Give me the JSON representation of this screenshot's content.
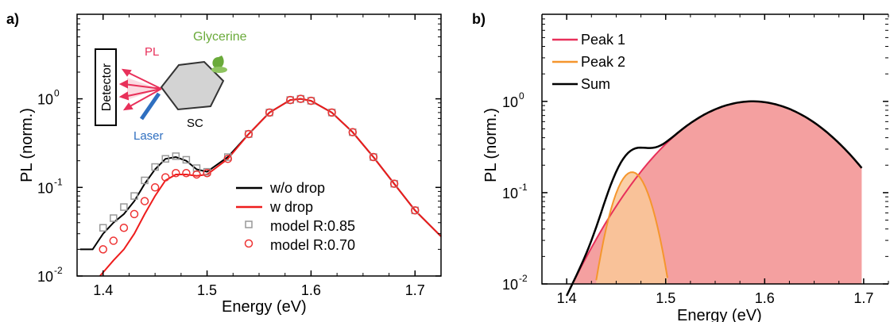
{
  "chart_data": [
    {
      "panel_label": "a)",
      "type": "line",
      "xlabel": "Energy (eV)",
      "ylabel": "PL (norm.)",
      "yscale": "log",
      "xlim": [
        1.375,
        1.725
      ],
      "ylim": [
        0.01,
        9
      ],
      "xticks": [
        "1.4",
        "1.5",
        "1.6",
        "1.7"
      ],
      "yticks": [
        {
          "base": "10",
          "exp": "-2",
          "value": 0.01
        },
        {
          "base": "10",
          "exp": "-1",
          "value": 0.1
        },
        {
          "base": "10",
          "exp": "0",
          "value": 1
        }
      ],
      "legend_position": "lower-right",
      "series": [
        {
          "name": "w/o drop",
          "color": "#000000",
          "style": "line",
          "x": [
            1.378,
            1.39,
            1.4,
            1.41,
            1.42,
            1.43,
            1.44,
            1.45,
            1.46,
            1.47,
            1.48,
            1.49,
            1.5,
            1.52,
            1.54,
            1.56,
            1.58,
            1.59,
            1.6,
            1.62,
            1.64,
            1.66,
            1.68,
            1.7,
            1.725
          ],
          "y": [
            0.02,
            0.02,
            0.03,
            0.04,
            0.05,
            0.07,
            0.11,
            0.16,
            0.21,
            0.22,
            0.2,
            0.16,
            0.15,
            0.22,
            0.4,
            0.7,
            0.97,
            1.0,
            0.95,
            0.7,
            0.42,
            0.22,
            0.11,
            0.055,
            0.028
          ]
        },
        {
          "name": "w drop",
          "color": "#ee1c1c",
          "style": "line",
          "x": [
            1.397,
            1.41,
            1.42,
            1.43,
            1.44,
            1.45,
            1.46,
            1.47,
            1.48,
            1.49,
            1.5,
            1.52,
            1.54,
            1.56,
            1.58,
            1.59,
            1.6,
            1.62,
            1.64,
            1.66,
            1.68,
            1.7,
            1.725
          ],
          "y": [
            0.01,
            0.015,
            0.02,
            0.03,
            0.05,
            0.08,
            0.12,
            0.14,
            0.14,
            0.135,
            0.14,
            0.21,
            0.4,
            0.7,
            0.97,
            1.0,
            0.95,
            0.7,
            0.42,
            0.22,
            0.11,
            0.055,
            0.028
          ]
        },
        {
          "name": "model R:0.85",
          "color": "#999999",
          "style": "square",
          "x": [
            1.4,
            1.41,
            1.42,
            1.43,
            1.44,
            1.45,
            1.46,
            1.47,
            1.48,
            1.49,
            1.5,
            1.52,
            1.54,
            1.56,
            1.58,
            1.59,
            1.6,
            1.62,
            1.64,
            1.66,
            1.68,
            1.7
          ],
          "y": [
            0.035,
            0.045,
            0.06,
            0.08,
            0.12,
            0.17,
            0.21,
            0.225,
            0.205,
            0.165,
            0.15,
            0.22,
            0.4,
            0.7,
            0.97,
            1.0,
            0.95,
            0.7,
            0.42,
            0.22,
            0.11,
            0.055
          ]
        },
        {
          "name": "model R:0.70",
          "color": "#ee3333",
          "style": "circle",
          "x": [
            1.4,
            1.41,
            1.42,
            1.43,
            1.44,
            1.45,
            1.46,
            1.47,
            1.48,
            1.49,
            1.5,
            1.52,
            1.54,
            1.56,
            1.58,
            1.59,
            1.6,
            1.62,
            1.64,
            1.66,
            1.68,
            1.7
          ],
          "y": [
            0.02,
            0.025,
            0.035,
            0.05,
            0.07,
            0.1,
            0.13,
            0.145,
            0.145,
            0.14,
            0.145,
            0.21,
            0.4,
            0.7,
            0.97,
            1.0,
            0.95,
            0.7,
            0.42,
            0.22,
            0.11,
            0.055
          ]
        }
      ],
      "inset": {
        "detector_label": "Detector",
        "pl_label": "PL",
        "glycerine_label": "Glycerine",
        "laser_label": "Laser",
        "sample_label": "SC",
        "pl_color": "#e8305a",
        "glycerine_color": "#6aaa3a",
        "laser_color": "#2f6fc0"
      }
    },
    {
      "panel_label": "b)",
      "type": "area",
      "xlabel": "Energy (eV)",
      "ylabel": "PL (norm.)",
      "yscale": "log",
      "xlim": [
        1.375,
        1.725
      ],
      "ylim": [
        0.01,
        9
      ],
      "xticks": [
        "1.4",
        "1.5",
        "1.6",
        "1.7"
      ],
      "yticks": [
        {
          "base": "10",
          "exp": "-2",
          "value": 0.01
        },
        {
          "base": "10",
          "exp": "-1",
          "value": 0.1
        },
        {
          "base": "10",
          "exp": "0",
          "value": 1
        }
      ],
      "legend_position": "top-left",
      "peaks": [
        {
          "name": "Peak 1",
          "color": "#e8305a",
          "fill": "#f4a0a0",
          "center": 1.588,
          "sigma": 0.06,
          "amplitude": 1.0
        },
        {
          "name": "Peak 2",
          "color": "#f5962d",
          "fill": "#f9c898",
          "center": 1.466,
          "sigma": 0.0155,
          "amplitude": 0.168
        }
      ],
      "sum": {
        "name": "Sum",
        "color": "#000000"
      },
      "x_range": [
        1.4,
        1.698
      ]
    }
  ]
}
